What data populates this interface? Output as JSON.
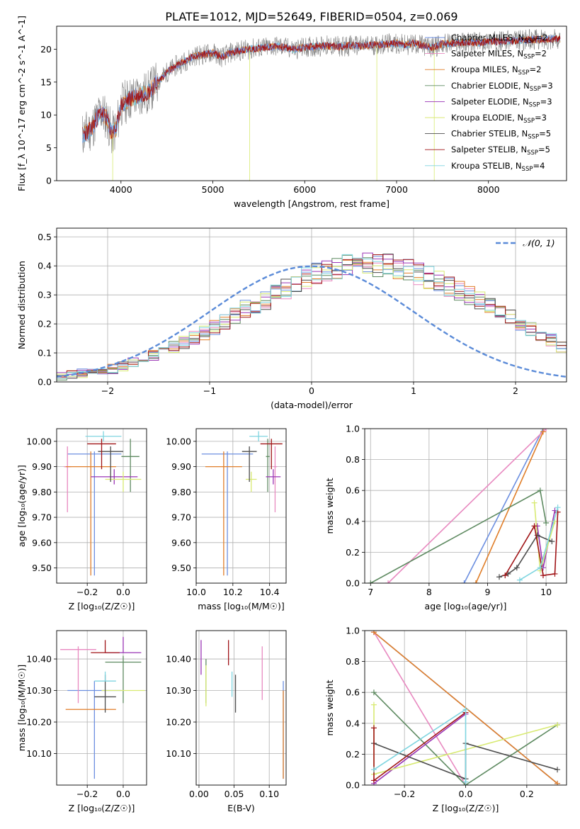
{
  "figure": {
    "title": "PLATE=1012, MJD=52649, FIBERID=0504, z=0.069"
  },
  "colors": {
    "chabrier_miles": "#6c8fe0",
    "salpeter_miles": "#e889c0",
    "kroupa_miles": "#e07e29",
    "chabrier_elodie": "#5e8a61",
    "salpeter_elodie": "#9a35b5",
    "kroupa_elodie": "#d8ea72",
    "chabrier_stelib": "#4d4d4d",
    "salpeter_stelib": "#a01417",
    "kroupa_stelib": "#7fd5e0",
    "data_spectrum": "#7f7f7f",
    "gaussian": "#5b8bd8",
    "grid": "#b0b0b0"
  },
  "chart_data": [
    {
      "id": "spectrum",
      "type": "line",
      "xlabel": "wavelength [Angstrom, rest frame]",
      "ylabel": "Flux [f_λ 10^-17 erg cm^-2 s^-1 A^-1]",
      "xlim": [
        3300,
        8850
      ],
      "ylim": [
        0,
        23.5
      ],
      "xticks": [
        4000,
        5000,
        6000,
        7000,
        8000
      ],
      "yticks": [
        0,
        5,
        10,
        15,
        20
      ],
      "grid": false,
      "legend_position": "right",
      "series_data_envelope": {
        "x": [
          3580,
          3650,
          3700,
          3780,
          3850,
          3900,
          3950,
          4000,
          4100,
          4200,
          4300,
          4400,
          4500,
          4600,
          4700,
          4800,
          4900,
          5000,
          5100,
          5200,
          5300,
          5400,
          5500,
          5600,
          5700,
          5800,
          5900,
          6000,
          6100,
          6200,
          6300,
          6400,
          6500,
          6600,
          6700,
          6800,
          6900,
          7000,
          7100,
          7200,
          7300,
          7400,
          7500,
          7600,
          7700,
          7800,
          7900,
          8000,
          8100,
          8200,
          8300,
          8400,
          8500,
          8600,
          8700,
          8780
        ],
        "y": [
          7.0,
          7.5,
          8.5,
          10.5,
          9.5,
          7.0,
          8.0,
          11.5,
          12.5,
          13.0,
          13.5,
          15.0,
          16.5,
          17.5,
          18.2,
          19.0,
          19.2,
          19.5,
          18.8,
          19.5,
          19.8,
          20.0,
          20.2,
          20.3,
          20.5,
          20.2,
          20.0,
          20.3,
          20.4,
          20.5,
          20.5,
          20.4,
          20.6,
          20.5,
          20.6,
          20.7,
          20.8,
          20.9,
          20.6,
          20.9,
          20.5,
          20.3,
          20.8,
          20.9,
          21.0,
          21.1,
          21.0,
          21.2,
          21.2,
          21.3,
          21.3,
          21.4,
          21.5,
          21.5,
          21.6,
          21.5
        ]
      },
      "legend": [
        {
          "label": "Chabrier MILES, N",
          "sub": "SSP",
          "suffix": "=2",
          "color_key": "chabrier_miles"
        },
        {
          "label": "Salpeter MILES, N",
          "sub": "SSP",
          "suffix": "=2",
          "color_key": "salpeter_miles"
        },
        {
          "label": "Kroupa MILES, N",
          "sub": "SSP",
          "suffix": "=2",
          "color_key": "kroupa_miles"
        },
        {
          "label": "Chabrier ELODIE, N",
          "sub": "SSP",
          "suffix": "=3",
          "color_key": "chabrier_elodie"
        },
        {
          "label": "Salpeter ELODIE, N",
          "sub": "SSP",
          "suffix": "=3",
          "color_key": "salpeter_elodie"
        },
        {
          "label": "Kroupa ELODIE, N",
          "sub": "SSP",
          "suffix": "=3",
          "color_key": "kroupa_elodie"
        },
        {
          "label": "Chabrier STELIB, N",
          "sub": "SSP",
          "suffix": "=5",
          "color_key": "chabrier_stelib"
        },
        {
          "label": "Salpeter STELIB, N",
          "sub": "SSP",
          "suffix": "=5",
          "color_key": "salpeter_stelib"
        },
        {
          "label": "Kroupa STELIB, N",
          "sub": "SSP",
          "suffix": "=4",
          "color_key": "kroupa_stelib"
        }
      ]
    },
    {
      "id": "residuals",
      "type": "histogram",
      "xlabel": "(data-model)/error",
      "ylabel": "Normed distribution",
      "xlim": [
        -2.5,
        2.5
      ],
      "ylim": [
        0,
        0.53
      ],
      "xticks": [
        -2,
        -1,
        0,
        1,
        2
      ],
      "yticks": [
        0.0,
        0.1,
        0.2,
        0.3,
        0.4,
        0.5
      ],
      "grid": true,
      "legend_position": "top-right",
      "legend": [
        {
          "label": "𝒩(0, 1)",
          "color_key": "gaussian",
          "style": "dashed"
        }
      ],
      "bin_width": 0.1,
      "bin_start": -2.5,
      "base_profile": [
        0.02,
        0.025,
        0.03,
        0.035,
        0.04,
        0.045,
        0.055,
        0.065,
        0.075,
        0.09,
        0.105,
        0.12,
        0.135,
        0.15,
        0.17,
        0.19,
        0.21,
        0.23,
        0.25,
        0.26,
        0.28,
        0.3,
        0.32,
        0.34,
        0.355,
        0.37,
        0.38,
        0.39,
        0.4,
        0.405,
        0.41,
        0.405,
        0.4,
        0.395,
        0.385,
        0.375,
        0.36,
        0.345,
        0.33,
        0.315,
        0.3,
        0.28,
        0.26,
        0.245,
        0.225,
        0.205,
        0.185,
        0.165,
        0.145,
        0.125,
        0.11,
        0.095,
        0.08,
        0.068,
        0.056,
        0.046,
        0.038,
        0.03,
        0.024,
        0.018
      ],
      "series_offsets": [
        {
          "color_key": "chabrier_miles",
          "seed": 1
        },
        {
          "color_key": "salpeter_miles",
          "seed": 2
        },
        {
          "color_key": "kroupa_miles",
          "seed": 3
        },
        {
          "color_key": "chabrier_elodie",
          "seed": 4
        },
        {
          "color_key": "salpeter_elodie",
          "seed": 5
        },
        {
          "color_key": "kroupa_elodie",
          "seed": 6
        },
        {
          "color_key": "chabrier_stelib",
          "seed": 7
        },
        {
          "color_key": "salpeter_stelib",
          "seed": 8
        },
        {
          "color_key": "kroupa_stelib",
          "seed": 9
        }
      ]
    },
    {
      "id": "age_vs_Z",
      "type": "errorbar",
      "xlabel": "Z [log₁₀(Z/Z☉)]",
      "ylabel": "age [log₁₀(age/yr)]",
      "xlim": [
        -0.37,
        0.13
      ],
      "ylim": [
        9.44,
        10.05
      ],
      "xticks": [
        -0.2,
        0.0
      ],
      "yticks": [
        9.5,
        9.6,
        9.7,
        9.8,
        9.9,
        10.0
      ],
      "grid": true,
      "points": [
        {
          "color_key": "chabrier_miles",
          "x": -0.16,
          "xerr": 0.15,
          "y": 9.95,
          "yerr_lo": 0.48,
          "yerr_hi": 0.01
        },
        {
          "color_key": "salpeter_miles",
          "x": -0.31,
          "xerr": 0.02,
          "y": 9.9,
          "yerr_lo": 0.18,
          "yerr_hi": 0.08
        },
        {
          "color_key": "kroupa_miles",
          "x": -0.18,
          "xerr": 0.14,
          "y": 9.9,
          "yerr_lo": 0.43,
          "yerr_hi": 0.06
        },
        {
          "color_key": "chabrier_elodie",
          "x": 0.04,
          "xerr": 0.05,
          "y": 9.94,
          "yerr_lo": 0.14,
          "yerr_hi": 0.07
        },
        {
          "color_key": "salpeter_elodie",
          "x": -0.05,
          "xerr": 0.13,
          "y": 9.86,
          "yerr_lo": 0.03,
          "yerr_hi": 0.03
        },
        {
          "color_key": "kroupa_elodie",
          "x": 0.0,
          "xerr": 0.1,
          "y": 9.85,
          "yerr_lo": 0.05,
          "yerr_hi": 0.03
        },
        {
          "color_key": "chabrier_stelib",
          "x": -0.07,
          "xerr": 0.07,
          "y": 9.96,
          "yerr_lo": 0.12,
          "yerr_hi": 0.02
        },
        {
          "color_key": "salpeter_stelib",
          "x": -0.12,
          "xerr": 0.08,
          "y": 9.99,
          "yerr_lo": 0.1,
          "yerr_hi": 0.02
        },
        {
          "color_key": "kroupa_stelib",
          "x": -0.11,
          "xerr": 0.1,
          "y": 10.02,
          "yerr_lo": 0.02,
          "yerr_hi": 0.02
        }
      ]
    },
    {
      "id": "age_vs_mass",
      "type": "errorbar",
      "xlabel": "mass [log₁₀(M/M☉)]",
      "ylabel": "",
      "xlim": [
        10.0,
        10.49
      ],
      "ylim": [
        9.44,
        10.05
      ],
      "xticks": [
        10.0,
        10.2,
        10.4
      ],
      "yticks": [
        9.5,
        9.6,
        9.7,
        9.8,
        9.9,
        10.0
      ],
      "grid": true,
      "points": [
        {
          "color_key": "chabrier_miles",
          "x": 10.17,
          "xerr": 0.14,
          "y": 9.95,
          "yerr_lo": 0.48,
          "yerr_hi": 0.01
        },
        {
          "color_key": "salpeter_miles",
          "x": 10.43,
          "xerr": 0.01,
          "y": 9.9,
          "yerr_lo": 0.18,
          "yerr_hi": 0.08
        },
        {
          "color_key": "kroupa_miles",
          "x": 10.15,
          "xerr": 0.1,
          "y": 9.9,
          "yerr_lo": 0.43,
          "yerr_hi": 0.06
        },
        {
          "color_key": "chabrier_elodie",
          "x": 10.39,
          "xerr": 0.01,
          "y": 9.94,
          "yerr_lo": 0.14,
          "yerr_hi": 0.07
        },
        {
          "color_key": "salpeter_elodie",
          "x": 10.42,
          "xerr": 0.04,
          "y": 9.86,
          "yerr_lo": 0.03,
          "yerr_hi": 0.03
        },
        {
          "color_key": "kroupa_elodie",
          "x": 10.3,
          "xerr": 0.03,
          "y": 9.85,
          "yerr_lo": 0.05,
          "yerr_hi": 0.03
        },
        {
          "color_key": "chabrier_stelib",
          "x": 10.29,
          "xerr": 0.04,
          "y": 9.96,
          "yerr_lo": 0.12,
          "yerr_hi": 0.02
        },
        {
          "color_key": "salpeter_stelib",
          "x": 10.41,
          "xerr": 0.06,
          "y": 9.99,
          "yerr_lo": 0.1,
          "yerr_hi": 0.02
        },
        {
          "color_key": "kroupa_stelib",
          "x": 10.34,
          "xerr": 0.05,
          "y": 10.02,
          "yerr_lo": 0.02,
          "yerr_hi": 0.02
        }
      ]
    },
    {
      "id": "weight_vs_age",
      "type": "line",
      "xlabel": "age [log₁₀(age/yr)]",
      "ylabel": "mass weight",
      "xlim": [
        6.9,
        10.35
      ],
      "ylim": [
        0,
        1
      ],
      "xticks": [
        7,
        8,
        9,
        10
      ],
      "yticks": [
        0.0,
        0.2,
        0.4,
        0.6,
        0.8,
        1.0
      ],
      "grid": true,
      "series": [
        {
          "color_key": "chabrier_miles",
          "x": [
            8.6,
            9.95
          ],
          "y": [
            0.0,
            1.0
          ]
        },
        {
          "color_key": "salpeter_miles",
          "x": [
            7.3,
            10.0
          ],
          "y": [
            0.0,
            1.0
          ]
        },
        {
          "color_key": "kroupa_miles",
          "x": [
            8.8,
            9.95
          ],
          "y": [
            0.0,
            0.98
          ]
        },
        {
          "color_key": "chabrier_elodie",
          "x": [
            7.0,
            9.9,
            10.0
          ],
          "y": [
            0.0,
            0.6,
            0.39
          ]
        },
        {
          "color_key": "salpeter_elodie",
          "x": [
            9.85,
            9.95,
            10.15
          ],
          "y": [
            0.37,
            0.1,
            0.47
          ]
        },
        {
          "color_key": "kroupa_elodie",
          "x": [
            9.8,
            9.9,
            10.15
          ],
          "y": [
            0.52,
            0.08,
            0.4
          ]
        },
        {
          "color_key": "chabrier_stelib",
          "x": [
            9.2,
            9.35,
            9.5,
            9.85,
            10.1
          ],
          "y": [
            0.04,
            0.06,
            0.1,
            0.31,
            0.27
          ]
        },
        {
          "color_key": "salpeter_stelib",
          "x": [
            9.3,
            9.8,
            9.95,
            10.15,
            10.2
          ],
          "y": [
            0.05,
            0.37,
            0.05,
            0.06,
            0.46
          ]
        },
        {
          "color_key": "kroupa_stelib",
          "x": [
            9.55,
            9.9,
            10.2
          ],
          "y": [
            0.02,
            0.1,
            0.49
          ]
        }
      ]
    },
    {
      "id": "mass_vs_Z",
      "type": "errorbar",
      "xlabel": "Z [log₁₀(Z/Z☉)]",
      "ylabel": "mass [log₁₀(M/M☉)]",
      "xlim": [
        -0.37,
        0.13
      ],
      "ylim": [
        10.0,
        10.49
      ],
      "xticks": [
        -0.2,
        0.0
      ],
      "yticks": [
        10.1,
        10.2,
        10.3,
        10.4
      ],
      "grid": true,
      "points": [
        {
          "color_key": "chabrier_miles",
          "x": -0.16,
          "xerr": 0.15,
          "y": 10.3,
          "yerr_lo": 0.28,
          "yerr_hi": 0.03
        },
        {
          "color_key": "salpeter_miles",
          "x": -0.25,
          "xerr": 0.1,
          "y": 10.43,
          "yerr_lo": 0.17,
          "yerr_hi": 0.01
        },
        {
          "color_key": "kroupa_miles",
          "x": -0.18,
          "xerr": 0.14,
          "y": 10.24,
          "yerr_lo": 0.0,
          "yerr_hi": 0.0
        },
        {
          "color_key": "chabrier_elodie",
          "x": 0.0,
          "xerr": 0.1,
          "y": 10.39,
          "yerr_lo": 0.13,
          "yerr_hi": 0.02
        },
        {
          "color_key": "salpeter_elodie",
          "x": 0.0,
          "xerr": 0.1,
          "y": 10.42,
          "yerr_lo": 0.0,
          "yerr_hi": 0.05
        },
        {
          "color_key": "kroupa_elodie",
          "x": 0.0,
          "xerr": 0.12,
          "y": 10.3,
          "yerr_lo": 0.0,
          "yerr_hi": 0.0
        },
        {
          "color_key": "chabrier_stelib",
          "x": -0.1,
          "xerr": 0.06,
          "y": 10.28,
          "yerr_lo": 0.05,
          "yerr_hi": 0.07
        },
        {
          "color_key": "salpeter_stelib",
          "x": -0.1,
          "xerr": 0.08,
          "y": 10.42,
          "yerr_lo": 0.0,
          "yerr_hi": 0.04
        },
        {
          "color_key": "kroupa_stelib",
          "x": -0.1,
          "xerr": 0.06,
          "y": 10.33,
          "yerr_lo": 0.0,
          "yerr_hi": 0.03
        }
      ]
    },
    {
      "id": "mass_vs_ebv",
      "type": "errorbar",
      "xlabel": "E(B-V)",
      "ylabel": "",
      "xlim": [
        -0.004,
        0.124
      ],
      "ylim": [
        10.0,
        10.49
      ],
      "xticks": [
        0.0,
        0.05,
        0.1
      ],
      "yticks": [
        10.1,
        10.2,
        10.3,
        10.4
      ],
      "grid": true,
      "points": [
        {
          "color_key": "chabrier_miles",
          "x": 0.12,
          "xerr": 0.0,
          "y": 10.3,
          "yerr_lo": 0.28,
          "yerr_hi": 0.03
        },
        {
          "color_key": "salpeter_miles",
          "x": 0.09,
          "xerr": 0.0,
          "y": 10.35,
          "yerr_lo": 0.08,
          "yerr_hi": 0.09
        },
        {
          "color_key": "kroupa_miles",
          "x": 0.12,
          "xerr": 0.0,
          "y": 10.15,
          "yerr_lo": 0.13,
          "yerr_hi": 0.15
        },
        {
          "color_key": "chabrier_elodie",
          "x": 0.01,
          "xerr": 0.0,
          "y": 10.33,
          "yerr_lo": 0.07,
          "yerr_hi": 0.07
        },
        {
          "color_key": "salpeter_elodie",
          "x": 0.003,
          "xerr": 0.0,
          "y": 10.4,
          "yerr_lo": 0.05,
          "yerr_hi": 0.06
        },
        {
          "color_key": "kroupa_elodie",
          "x": 0.01,
          "xerr": 0.0,
          "y": 10.3,
          "yerr_lo": 0.05,
          "yerr_hi": 0.08
        },
        {
          "color_key": "chabrier_stelib",
          "x": 0.052,
          "xerr": 0.0,
          "y": 10.29,
          "yerr_lo": 0.06,
          "yerr_hi": 0.06
        },
        {
          "color_key": "salpeter_stelib",
          "x": 0.042,
          "xerr": 0.0,
          "y": 10.42,
          "yerr_lo": 0.04,
          "yerr_hi": 0.04
        },
        {
          "color_key": "kroupa_stelib",
          "x": 0.047,
          "xerr": 0.0,
          "y": 10.32,
          "yerr_lo": 0.04,
          "yerr_hi": 0.04
        }
      ]
    },
    {
      "id": "weight_vs_Z",
      "type": "line",
      "xlabel": "Z [log₁₀(Z/Z☉)]",
      "ylabel": "mass weight",
      "xlim": [
        -0.33,
        0.33
      ],
      "ylim": [
        0,
        1
      ],
      "xticks": [
        -0.2,
        0.0,
        0.2
      ],
      "yticks": [
        0.0,
        0.2,
        0.4,
        0.6,
        0.8,
        1.0
      ],
      "grid": true,
      "series": [
        {
          "color_key": "chabrier_miles",
          "x": [
            -0.3,
            0.3
          ],
          "y": [
            0.99,
            0.01
          ]
        },
        {
          "color_key": "salpeter_miles",
          "x": [
            -0.3,
            0.0
          ],
          "y": [
            0.99,
            0.0
          ]
        },
        {
          "color_key": "kroupa_miles",
          "x": [
            -0.3,
            0.3
          ],
          "y": [
            0.99,
            0.01
          ]
        },
        {
          "color_key": "chabrier_elodie",
          "x": [
            -0.3,
            0.0,
            0.3
          ],
          "y": [
            0.6,
            0.0,
            0.39
          ]
        },
        {
          "color_key": "salpeter_elodie",
          "x": [
            -0.3,
            0.0
          ],
          "y": [
            0.01,
            0.46
          ]
        },
        {
          "color_key": "kroupa_elodie",
          "x": [
            -0.3,
            -0.3,
            0.3
          ],
          "y": [
            0.52,
            0.07,
            0.39
          ]
        },
        {
          "color_key": "chabrier_stelib",
          "x": [
            -0.3,
            0.0,
            0.0,
            0.3
          ],
          "y": [
            0.27,
            0.04,
            0.27,
            0.1
          ]
        },
        {
          "color_key": "salpeter_stelib",
          "x": [
            -0.3,
            -0.3,
            0.0
          ],
          "y": [
            0.37,
            0.03,
            0.47
          ]
        },
        {
          "color_key": "kroupa_stelib",
          "x": [
            -0.3,
            0.0,
            0.0
          ],
          "y": [
            0.1,
            0.49,
            0.02
          ]
        }
      ]
    }
  ]
}
